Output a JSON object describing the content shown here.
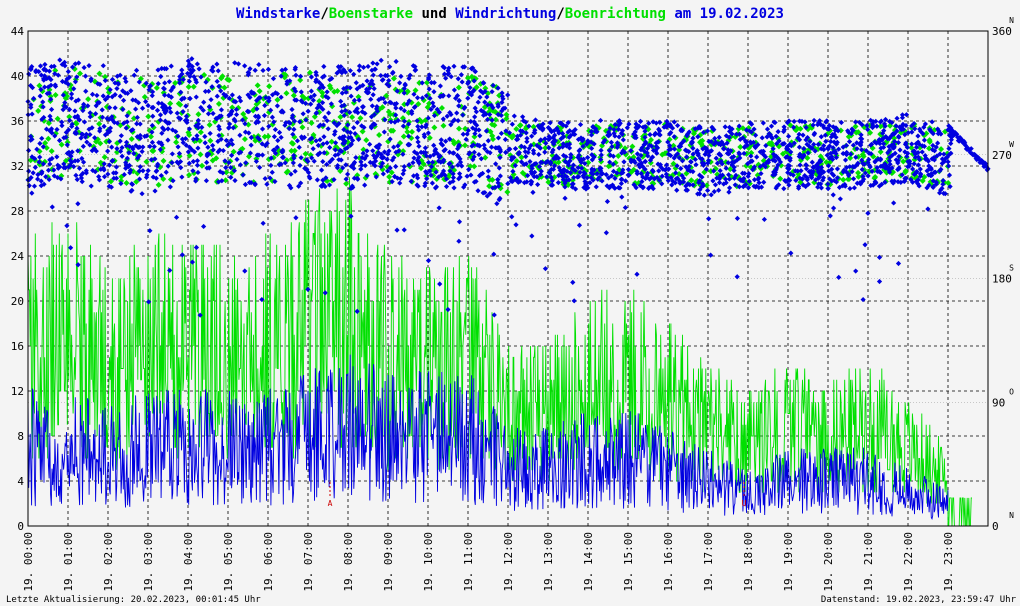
{
  "title": {
    "part1": "Windstarke",
    "sep1": "/",
    "part2": "Boenstarke",
    "mid": " und ",
    "part3": "Windrichtung",
    "sep2": "/",
    "part4": "Boenrichtung",
    "end": " am 19.02.2023"
  },
  "colors": {
    "wind": "#0000e0",
    "gust": "#00e000",
    "marker": "#cc0000",
    "grid": "#000000",
    "background": "#f4f4f4"
  },
  "footer": {
    "left": "Letzte Aktualisierung: 20.02.2023, 00:01:45 Uhr",
    "right": "Datenstand: 19.02.2023, 23:59:47 Uhr"
  },
  "chart_data": {
    "type": "scatter",
    "x_ticks": [
      "19. 00:00",
      "19. 01:00",
      "19. 02:00",
      "19. 03:00",
      "19. 04:00",
      "19. 05:00",
      "19. 06:00",
      "19. 07:00",
      "19. 08:00",
      "19. 09:00",
      "19. 10:00",
      "19. 11:00",
      "19. 12:00",
      "19. 13:00",
      "19. 14:00",
      "19. 15:00",
      "19. 16:00",
      "19. 17:00",
      "19. 18:00",
      "19. 19:00",
      "19. 20:00",
      "19. 21:00",
      "19. 22:00",
      "19. 23:00"
    ],
    "xlim_hours": [
      0,
      24
    ],
    "y_left_ticks": [
      "0",
      "4",
      "8",
      "12",
      "16",
      "20",
      "24",
      "28",
      "32",
      "36",
      "40",
      "44"
    ],
    "ylim_left": [
      0,
      44
    ],
    "y_right_ticks": [
      {
        "value": 0,
        "label": "0",
        "dir": "N"
      },
      {
        "value": 90,
        "label": "90",
        "dir": "O"
      },
      {
        "value": 180,
        "label": "180",
        "dir": "S"
      },
      {
        "value": 270,
        "label": "270",
        "dir": "W"
      },
      {
        "value": 360,
        "label": "360",
        "dir": "N"
      }
    ],
    "ylim_right": [
      0,
      360
    ],
    "markers": [
      {
        "hour": 7.55,
        "label": "A"
      },
      {
        "hour": 17.9,
        "label": "U"
      }
    ],
    "speed_hourly": {
      "hours": [
        0,
        1,
        2,
        3,
        4,
        5,
        6,
        7,
        8,
        9,
        10,
        11,
        12,
        13,
        14,
        15,
        16,
        17,
        18,
        19,
        20,
        21,
        22,
        23
      ],
      "wind_avg": [
        7,
        7,
        6,
        7,
        7,
        7,
        7,
        8,
        9,
        8,
        8,
        8,
        5,
        5,
        6,
        6,
        5,
        4,
        3,
        4,
        4,
        4,
        3,
        2
      ],
      "gust_avg": [
        17,
        17,
        14,
        16,
        16,
        16,
        16,
        18,
        19,
        15,
        14,
        15,
        10,
        10,
        13,
        13,
        11,
        9,
        7,
        9,
        8,
        9,
        7,
        4
      ]
    },
    "direction_hourly": {
      "hours": [
        0,
        1,
        2,
        3,
        4,
        5,
        6,
        7,
        8,
        9,
        10,
        11,
        12,
        13,
        14,
        15,
        16,
        17,
        18,
        19,
        20,
        21,
        22,
        23
      ],
      "wind_dir_avg": [
        290,
        295,
        290,
        285,
        295,
        295,
        290,
        290,
        290,
        295,
        290,
        290,
        275,
        270,
        270,
        270,
        270,
        265,
        270,
        270,
        270,
        270,
        275,
        265
      ],
      "gust_dir_avg": [
        285,
        295,
        290,
        285,
        290,
        290,
        290,
        290,
        285,
        290,
        290,
        290,
        275,
        270,
        270,
        270,
        270,
        265,
        270,
        270,
        270,
        270,
        275,
        265
      ]
    }
  }
}
